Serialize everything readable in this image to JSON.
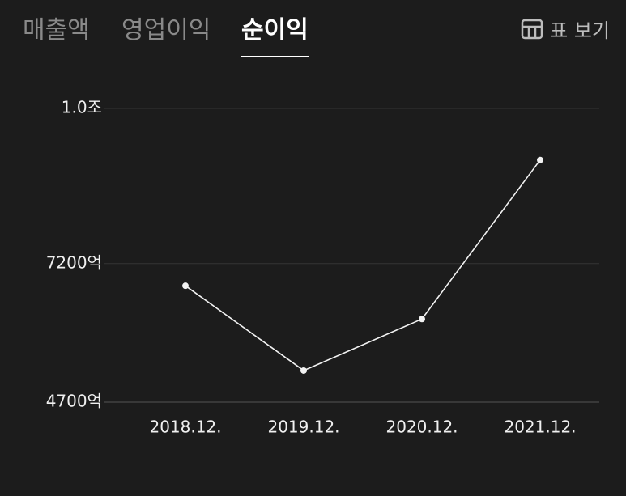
{
  "tabs": [
    "매출액",
    "영업이익",
    "순이익"
  ],
  "active_tab": 2,
  "table_view": "표 보기",
  "chart_data": {
    "type": "line",
    "categories": [
      "2018.12.",
      "2019.12.",
      "2020.12.",
      "2021.12."
    ],
    "values": [
      6800,
      5270,
      6200,
      9070
    ],
    "color": "#f2f2f2",
    "ylim": [
      4700,
      10000
    ],
    "yticks": [
      {
        "value": 4700,
        "label": "4700억"
      },
      {
        "value": 7200,
        "label": "7200억"
      },
      {
        "value": 10000,
        "label": "1.0조"
      }
    ],
    "grid": true
  }
}
